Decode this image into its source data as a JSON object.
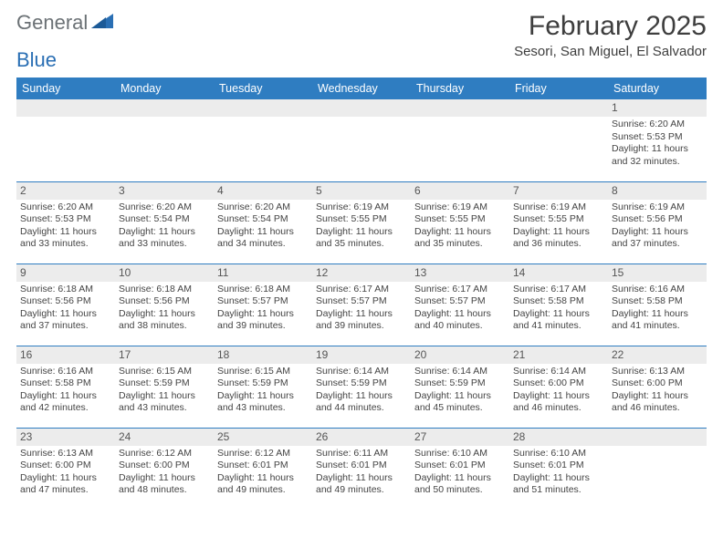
{
  "brand": {
    "part1": "General",
    "part2": "Blue"
  },
  "title": "February 2025",
  "location": "Sesori, San Miguel, El Salvador",
  "colors": {
    "header_bg": "#2f7dc1",
    "header_text": "#ffffff",
    "daynum_bg": "#ececec",
    "border": "#2f7dc1",
    "text": "#444444",
    "logo_gray": "#6b7175",
    "logo_blue": "#2a6fb4"
  },
  "weekdays": [
    "Sunday",
    "Monday",
    "Tuesday",
    "Wednesday",
    "Thursday",
    "Friday",
    "Saturday"
  ],
  "weeks": [
    [
      null,
      null,
      null,
      null,
      null,
      null,
      {
        "n": "1",
        "sr": "Sunrise: 6:20 AM",
        "ss": "Sunset: 5:53 PM",
        "d1": "Daylight: 11 hours",
        "d2": "and 32 minutes."
      }
    ],
    [
      {
        "n": "2",
        "sr": "Sunrise: 6:20 AM",
        "ss": "Sunset: 5:53 PM",
        "d1": "Daylight: 11 hours",
        "d2": "and 33 minutes."
      },
      {
        "n": "3",
        "sr": "Sunrise: 6:20 AM",
        "ss": "Sunset: 5:54 PM",
        "d1": "Daylight: 11 hours",
        "d2": "and 33 minutes."
      },
      {
        "n": "4",
        "sr": "Sunrise: 6:20 AM",
        "ss": "Sunset: 5:54 PM",
        "d1": "Daylight: 11 hours",
        "d2": "and 34 minutes."
      },
      {
        "n": "5",
        "sr": "Sunrise: 6:19 AM",
        "ss": "Sunset: 5:55 PM",
        "d1": "Daylight: 11 hours",
        "d2": "and 35 minutes."
      },
      {
        "n": "6",
        "sr": "Sunrise: 6:19 AM",
        "ss": "Sunset: 5:55 PM",
        "d1": "Daylight: 11 hours",
        "d2": "and 35 minutes."
      },
      {
        "n": "7",
        "sr": "Sunrise: 6:19 AM",
        "ss": "Sunset: 5:55 PM",
        "d1": "Daylight: 11 hours",
        "d2": "and 36 minutes."
      },
      {
        "n": "8",
        "sr": "Sunrise: 6:19 AM",
        "ss": "Sunset: 5:56 PM",
        "d1": "Daylight: 11 hours",
        "d2": "and 37 minutes."
      }
    ],
    [
      {
        "n": "9",
        "sr": "Sunrise: 6:18 AM",
        "ss": "Sunset: 5:56 PM",
        "d1": "Daylight: 11 hours",
        "d2": "and 37 minutes."
      },
      {
        "n": "10",
        "sr": "Sunrise: 6:18 AM",
        "ss": "Sunset: 5:56 PM",
        "d1": "Daylight: 11 hours",
        "d2": "and 38 minutes."
      },
      {
        "n": "11",
        "sr": "Sunrise: 6:18 AM",
        "ss": "Sunset: 5:57 PM",
        "d1": "Daylight: 11 hours",
        "d2": "and 39 minutes."
      },
      {
        "n": "12",
        "sr": "Sunrise: 6:17 AM",
        "ss": "Sunset: 5:57 PM",
        "d1": "Daylight: 11 hours",
        "d2": "and 39 minutes."
      },
      {
        "n": "13",
        "sr": "Sunrise: 6:17 AM",
        "ss": "Sunset: 5:57 PM",
        "d1": "Daylight: 11 hours",
        "d2": "and 40 minutes."
      },
      {
        "n": "14",
        "sr": "Sunrise: 6:17 AM",
        "ss": "Sunset: 5:58 PM",
        "d1": "Daylight: 11 hours",
        "d2": "and 41 minutes."
      },
      {
        "n": "15",
        "sr": "Sunrise: 6:16 AM",
        "ss": "Sunset: 5:58 PM",
        "d1": "Daylight: 11 hours",
        "d2": "and 41 minutes."
      }
    ],
    [
      {
        "n": "16",
        "sr": "Sunrise: 6:16 AM",
        "ss": "Sunset: 5:58 PM",
        "d1": "Daylight: 11 hours",
        "d2": "and 42 minutes."
      },
      {
        "n": "17",
        "sr": "Sunrise: 6:15 AM",
        "ss": "Sunset: 5:59 PM",
        "d1": "Daylight: 11 hours",
        "d2": "and 43 minutes."
      },
      {
        "n": "18",
        "sr": "Sunrise: 6:15 AM",
        "ss": "Sunset: 5:59 PM",
        "d1": "Daylight: 11 hours",
        "d2": "and 43 minutes."
      },
      {
        "n": "19",
        "sr": "Sunrise: 6:14 AM",
        "ss": "Sunset: 5:59 PM",
        "d1": "Daylight: 11 hours",
        "d2": "and 44 minutes."
      },
      {
        "n": "20",
        "sr": "Sunrise: 6:14 AM",
        "ss": "Sunset: 5:59 PM",
        "d1": "Daylight: 11 hours",
        "d2": "and 45 minutes."
      },
      {
        "n": "21",
        "sr": "Sunrise: 6:14 AM",
        "ss": "Sunset: 6:00 PM",
        "d1": "Daylight: 11 hours",
        "d2": "and 46 minutes."
      },
      {
        "n": "22",
        "sr": "Sunrise: 6:13 AM",
        "ss": "Sunset: 6:00 PM",
        "d1": "Daylight: 11 hours",
        "d2": "and 46 minutes."
      }
    ],
    [
      {
        "n": "23",
        "sr": "Sunrise: 6:13 AM",
        "ss": "Sunset: 6:00 PM",
        "d1": "Daylight: 11 hours",
        "d2": "and 47 minutes."
      },
      {
        "n": "24",
        "sr": "Sunrise: 6:12 AM",
        "ss": "Sunset: 6:00 PM",
        "d1": "Daylight: 11 hours",
        "d2": "and 48 minutes."
      },
      {
        "n": "25",
        "sr": "Sunrise: 6:12 AM",
        "ss": "Sunset: 6:01 PM",
        "d1": "Daylight: 11 hours",
        "d2": "and 49 minutes."
      },
      {
        "n": "26",
        "sr": "Sunrise: 6:11 AM",
        "ss": "Sunset: 6:01 PM",
        "d1": "Daylight: 11 hours",
        "d2": "and 49 minutes."
      },
      {
        "n": "27",
        "sr": "Sunrise: 6:10 AM",
        "ss": "Sunset: 6:01 PM",
        "d1": "Daylight: 11 hours",
        "d2": "and 50 minutes."
      },
      {
        "n": "28",
        "sr": "Sunrise: 6:10 AM",
        "ss": "Sunset: 6:01 PM",
        "d1": "Daylight: 11 hours",
        "d2": "and 51 minutes."
      },
      null
    ]
  ]
}
